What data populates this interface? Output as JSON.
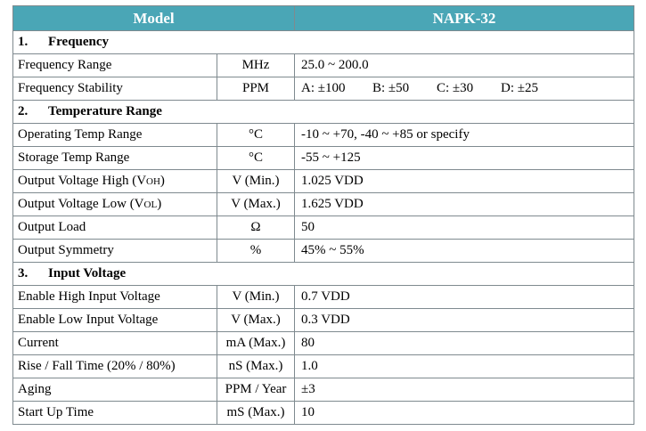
{
  "header": {
    "label": "Model",
    "model": "NAPK-32"
  },
  "sections": [
    {
      "number": "1.",
      "title": "Frequency",
      "rows": [
        {
          "parameter": "Frequency Range",
          "unit": "MHz",
          "value": "25.0 ~ 200.0"
        },
        {
          "parameter": "Frequency Stability",
          "unit": "PPM",
          "options": [
            "A: ±100",
            "B: ±50",
            "C: ±30",
            "D: ±25"
          ]
        }
      ]
    },
    {
      "number": "2.",
      "title": "Temperature Range",
      "rows": [
        {
          "parameter": "Operating Temp Range",
          "unit": "°C",
          "value": "-10 ~ +70, -40 ~ +85 or specify"
        },
        {
          "parameter": "Storage Temp Range",
          "unit": "°C",
          "value": "-55 ~ +125"
        },
        {
          "parameter": "Output Voltage High (V",
          "parameter_sub": "OH",
          "parameter_end": ")",
          "unit": "V (Min.)",
          "value": "1.025 VDD"
        },
        {
          "parameter": "Output Voltage Low (V",
          "parameter_sub": "OL",
          "parameter_end": ")",
          "unit": "V (Max.)",
          "value": "1.625 VDD"
        },
        {
          "parameter": "Output Load",
          "unit": "Ω",
          "value": "50"
        },
        {
          "parameter": "Output Symmetry",
          "unit": "%",
          "value": "45% ~ 55%"
        }
      ]
    },
    {
      "number": "3.",
      "title": "Input Voltage",
      "rows": [
        {
          "parameter": "Enable High Input Voltage",
          "unit": "V (Min.)",
          "value": "0.7 VDD"
        },
        {
          "parameter": "Enable Low Input Voltage",
          "unit": "V (Max.)",
          "value": "0.3 VDD"
        },
        {
          "parameter": "Current",
          "unit": "mA (Max.)",
          "value": "80"
        },
        {
          "parameter": "Rise / Fall Time (20% / 80%)",
          "unit": "nS (Max.)",
          "value": "1.0"
        },
        {
          "parameter": "Aging",
          "unit": "PPM / Year",
          "value": "±3"
        },
        {
          "parameter": "Start Up Time",
          "unit": "mS (Max.)",
          "value": "10"
        }
      ]
    }
  ],
  "colors": {
    "header_background": "#4aa6b6",
    "header_text": "#ffffff",
    "border": "#7f8a8f"
  }
}
